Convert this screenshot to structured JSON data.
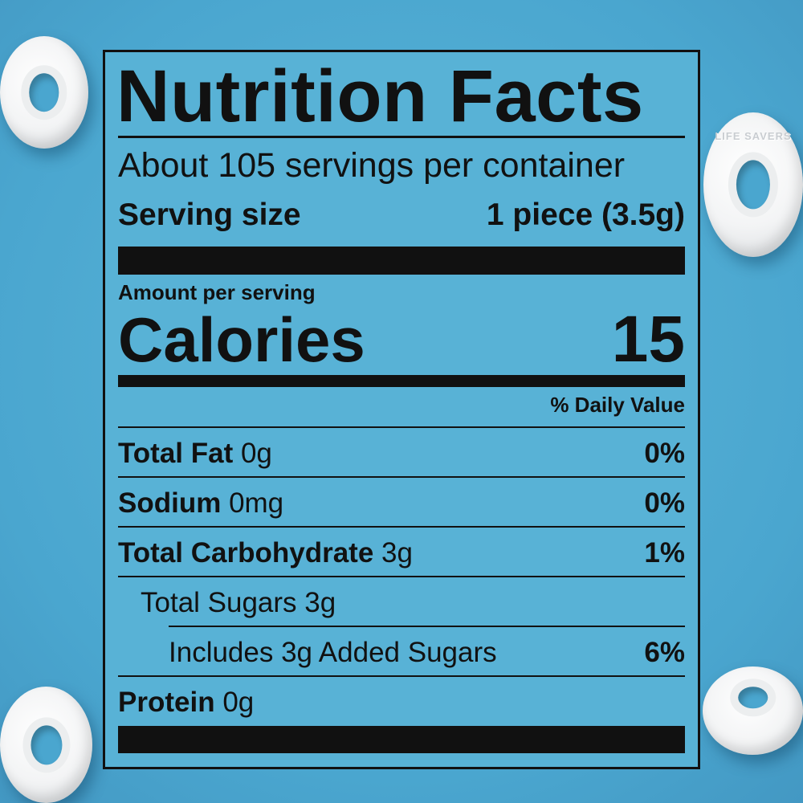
{
  "title": "Nutrition Facts",
  "servings": "About 105 servings per container",
  "serving_size": {
    "label": "Serving size",
    "value": "1 piece (3.5g)"
  },
  "amount_per_serving": "Amount per serving",
  "calories": {
    "label": "Calories",
    "value": "15"
  },
  "daily_value_header": "% Daily Value",
  "nutrients": [
    {
      "name": "Total Fat",
      "amount": "0g",
      "dv": "0%"
    },
    {
      "name": "Sodium",
      "amount": "0mg",
      "dv": "0%"
    },
    {
      "name": "Total Carbohydrate",
      "amount": "3g",
      "dv": "1%"
    },
    {
      "name": "Total Sugars 3g",
      "amount": "",
      "dv": ""
    },
    {
      "name": "Includes 3g Added Sugars",
      "amount": "",
      "dv": "6%"
    },
    {
      "name": "Protein",
      "amount": "0g",
      "dv": ""
    }
  ],
  "colors": {
    "background": "#4aa6cf",
    "label": "#58b2d6",
    "ink": "#111111",
    "candy": "#f3f4f5"
  },
  "decor": {
    "candy_brand": "LIFE SAVERS"
  }
}
